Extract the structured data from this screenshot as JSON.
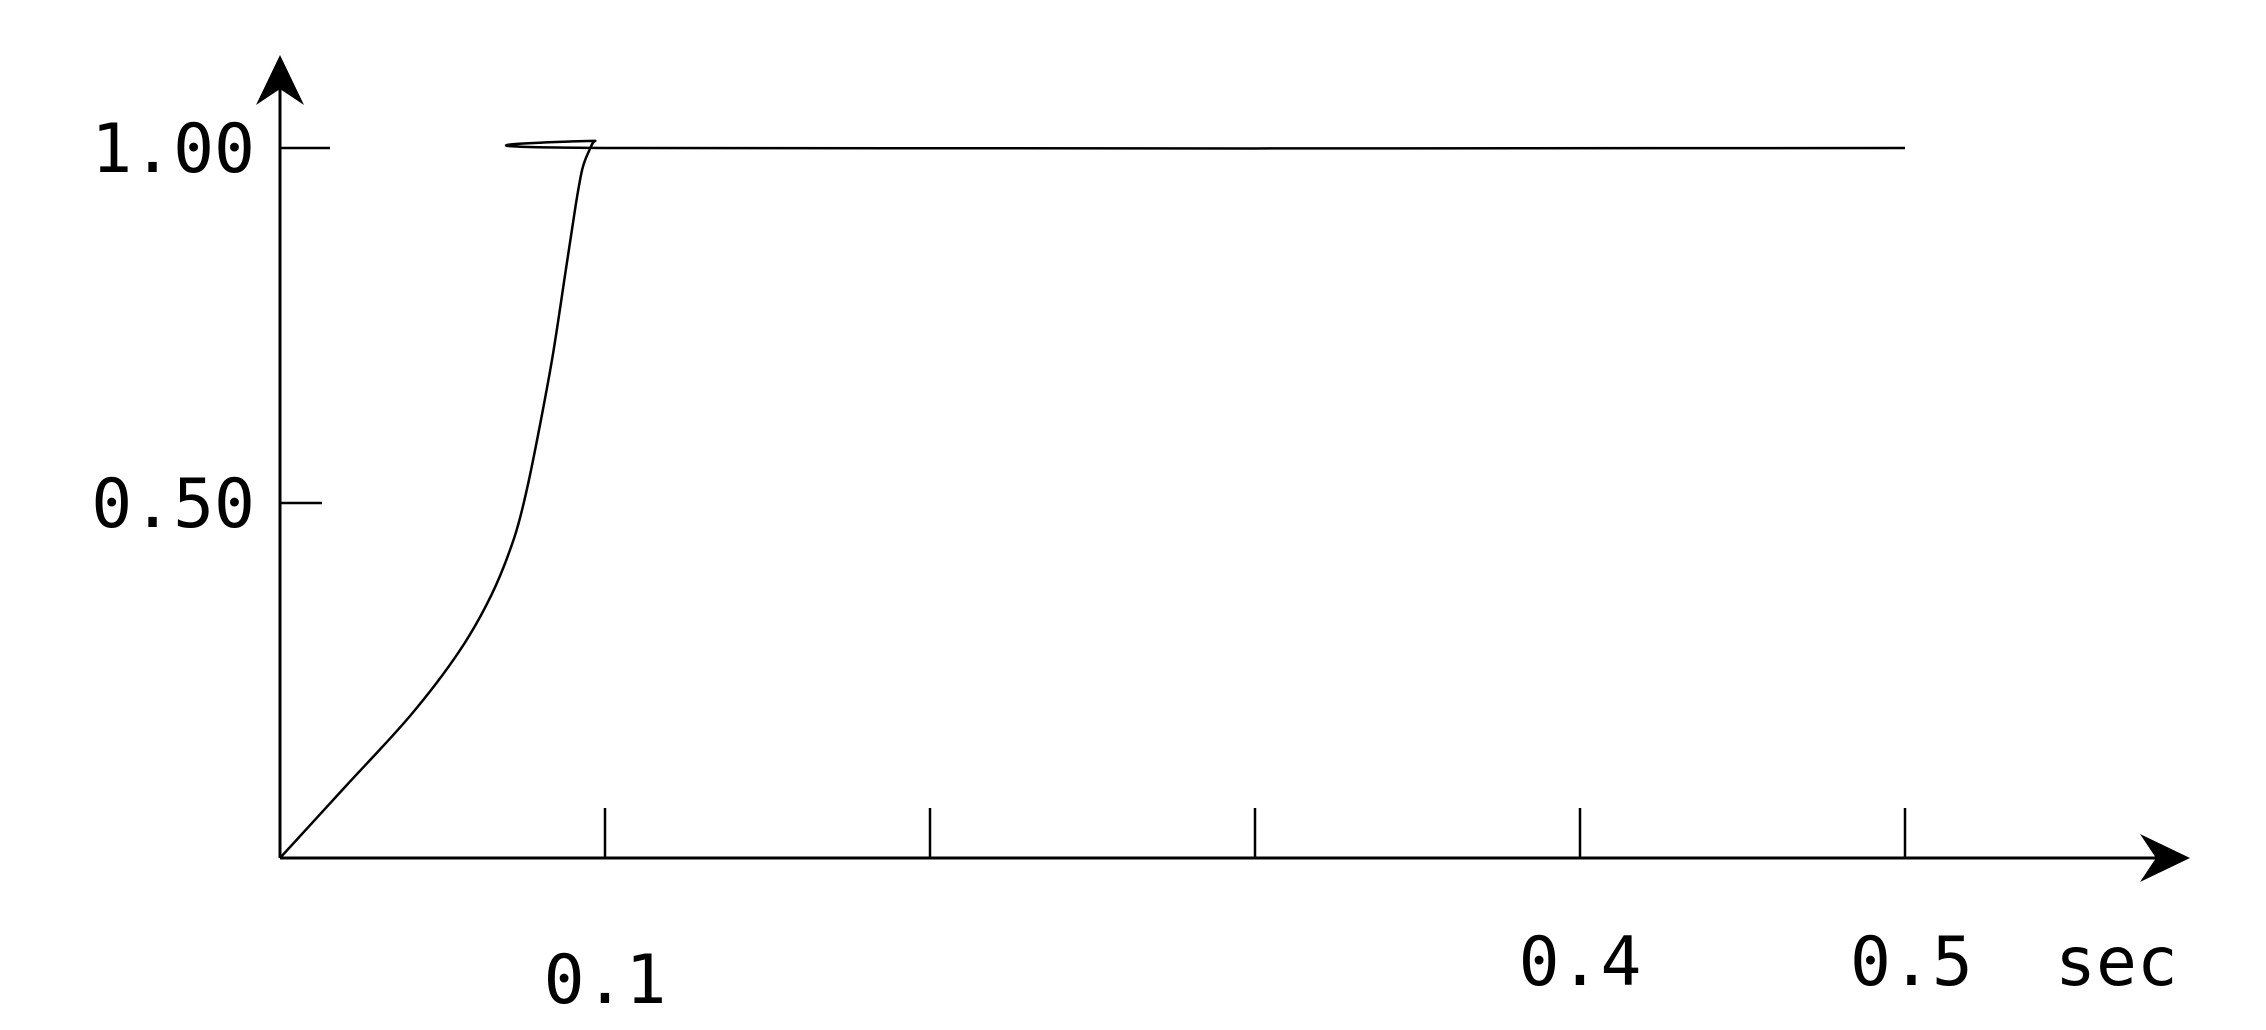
{
  "chart_data": {
    "type": "line",
    "title": "",
    "xlabel": "",
    "ylabel": "",
    "x_unit": "sec",
    "xlim": [
      0,
      0.55
    ],
    "ylim": [
      0,
      1.1
    ],
    "x_ticks": [
      0.1,
      0.2,
      0.3,
      0.4,
      0.5
    ],
    "x_tick_labels": [
      "0.1",
      "",
      "",
      "0.4",
      "0.5"
    ],
    "y_ticks": [
      0.5,
      1.0
    ],
    "y_tick_labels": [
      "0.50",
      "1.00"
    ],
    "grid": false,
    "legend": "none",
    "series": [
      {
        "x": [
          0,
          0.02,
          0.04,
          0.055,
          0.065,
          0.072,
          0.076,
          0.08,
          0.084,
          0.088,
          0.091,
          0.093,
          0.095,
          0.097,
          0.1,
          0.5
        ],
        "y": [
          0,
          0.1,
          0.2,
          0.29,
          0.37,
          0.45,
          0.52,
          0.61,
          0.71,
          0.83,
          0.92,
          0.97,
          0.995,
          1.01,
          1.0,
          1.0
        ]
      }
    ]
  }
}
